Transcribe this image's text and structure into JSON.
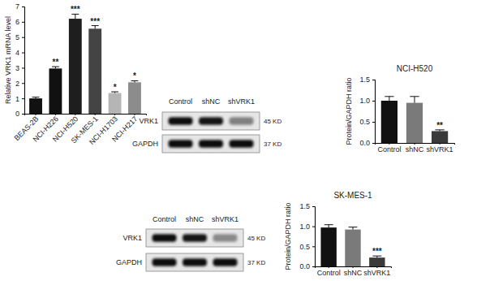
{
  "chart_data": [
    {
      "type": "bar",
      "y_label": "Relative VRK1 mRNA level",
      "categories": [
        "BEAS-2B",
        "NCI-H226",
        "NCI-H520",
        "SK-MES-1",
        "NCI-H1703",
        "NCI-H217"
      ],
      "values": [
        1.0,
        2.95,
        6.2,
        5.55,
        1.35,
        2.05
      ],
      "errors": [
        0.08,
        0.12,
        0.3,
        0.2,
        0.08,
        0.1
      ],
      "annotations": [
        null,
        "**",
        "***",
        "***",
        "*",
        "*"
      ],
      "colors": [
        "#111111",
        "#111111",
        "#1e1e1e",
        "#444444",
        "#b5b5b5",
        "#8c8c8c"
      ],
      "ylim": [
        0,
        7
      ],
      "yticks": [
        0,
        1,
        2,
        3,
        4,
        5,
        6,
        7
      ]
    },
    {
      "type": "bar",
      "title": "NCI-H520",
      "y_label": "Protein/GAPDH ratio",
      "categories": [
        "Control",
        "shNC",
        "shVRK1"
      ],
      "values": [
        1.0,
        0.95,
        0.28
      ],
      "errors": [
        0.1,
        0.15,
        0.03
      ],
      "annotations": [
        null,
        null,
        "**"
      ],
      "colors": [
        "#111111",
        "#7a7a7a",
        "#3a3a3a"
      ],
      "ylim": [
        0,
        1.5
      ],
      "yticks": [
        {
          "value": 0,
          "label": "0.0"
        },
        {
          "value": 0.5,
          "label": "0.5"
        },
        {
          "value": 1,
          "label": "1.0"
        },
        {
          "value": 1.5,
          "label": "1.5"
        }
      ]
    },
    {
      "type": "bar",
      "title": "SK-MES-1",
      "y_label": "Protein/GAPDH ratio",
      "categories": [
        "Control",
        "shNC",
        "shVRK1"
      ],
      "values": [
        0.97,
        0.92,
        0.22
      ],
      "errors": [
        0.07,
        0.06,
        0.04
      ],
      "annotations": [
        null,
        null,
        "***"
      ],
      "colors": [
        "#111111",
        "#7a7a7a",
        "#3a3a3a"
      ],
      "ylim": [
        0,
        1.5
      ],
      "yticks": [
        {
          "value": 0,
          "label": "0.0"
        },
        {
          "value": 0.5,
          "label": "0.5"
        },
        {
          "value": 1,
          "label": "1.0"
        },
        {
          "value": 1.5,
          "label": "1.5"
        }
      ]
    }
  ],
  "blots": [
    {
      "lanes": [
        "Control",
        "shNC",
        "shVRK1"
      ],
      "rows": [
        {
          "label": "VRK1",
          "size": "45 KD"
        },
        {
          "label": "GAPDH",
          "size": "37 KD"
        }
      ]
    },
    {
      "lanes": [
        "Control",
        "shNC",
        "shVRK1"
      ],
      "rows": [
        {
          "label": "VRK1",
          "size": "45 KD"
        },
        {
          "label": "GAPDH",
          "size": "37 KD"
        }
      ]
    }
  ]
}
